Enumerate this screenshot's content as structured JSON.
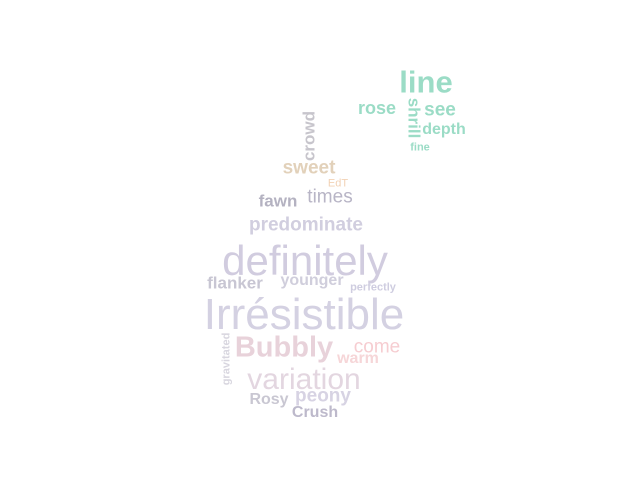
{
  "cloud": {
    "words": [
      {
        "text": "line",
        "color": "#9bdcc6"
      },
      {
        "text": "rose",
        "color": "#9bdcc6"
      },
      {
        "text": "see",
        "color": "#9bdcc6"
      },
      {
        "text": "depth",
        "color": "#9bdcc6"
      },
      {
        "text": "shrill",
        "color": "#9bdcc6"
      },
      {
        "text": "fine",
        "color": "#9bdcc6"
      },
      {
        "text": "crowd",
        "color": "#c7c5cc"
      },
      {
        "text": "sweet",
        "color": "#e2d1ba"
      },
      {
        "text": "EdT",
        "color": "#f2d2b5"
      },
      {
        "text": "fawn",
        "color": "#b4b2c1"
      },
      {
        "text": "times",
        "color": "#b8b5c6"
      },
      {
        "text": "predominate",
        "color": "#d1cedf"
      },
      {
        "text": "definitely",
        "color": "#d1ccdf"
      },
      {
        "text": "flanker",
        "color": "#c8c6d3"
      },
      {
        "text": "younger",
        "color": "#d0cedc"
      },
      {
        "text": "perfectly",
        "color": "#cfcde0"
      },
      {
        "text": "Irrésistible",
        "color": "#d4d1e2"
      },
      {
        "text": "Bubbly",
        "color": "#e8d2da"
      },
      {
        "text": "come",
        "color": "#f6cdd1"
      },
      {
        "text": "warm",
        "color": "#f6d6d8"
      },
      {
        "text": "gravitated",
        "color": "#d8d6df"
      },
      {
        "text": "variation",
        "color": "#e3d6e0"
      },
      {
        "text": "Rosy",
        "color": "#c9c7d2"
      },
      {
        "text": "peony",
        "color": "#d7d3e3"
      },
      {
        "text": "Crush",
        "color": "#bdb9cb"
      }
    ]
  }
}
